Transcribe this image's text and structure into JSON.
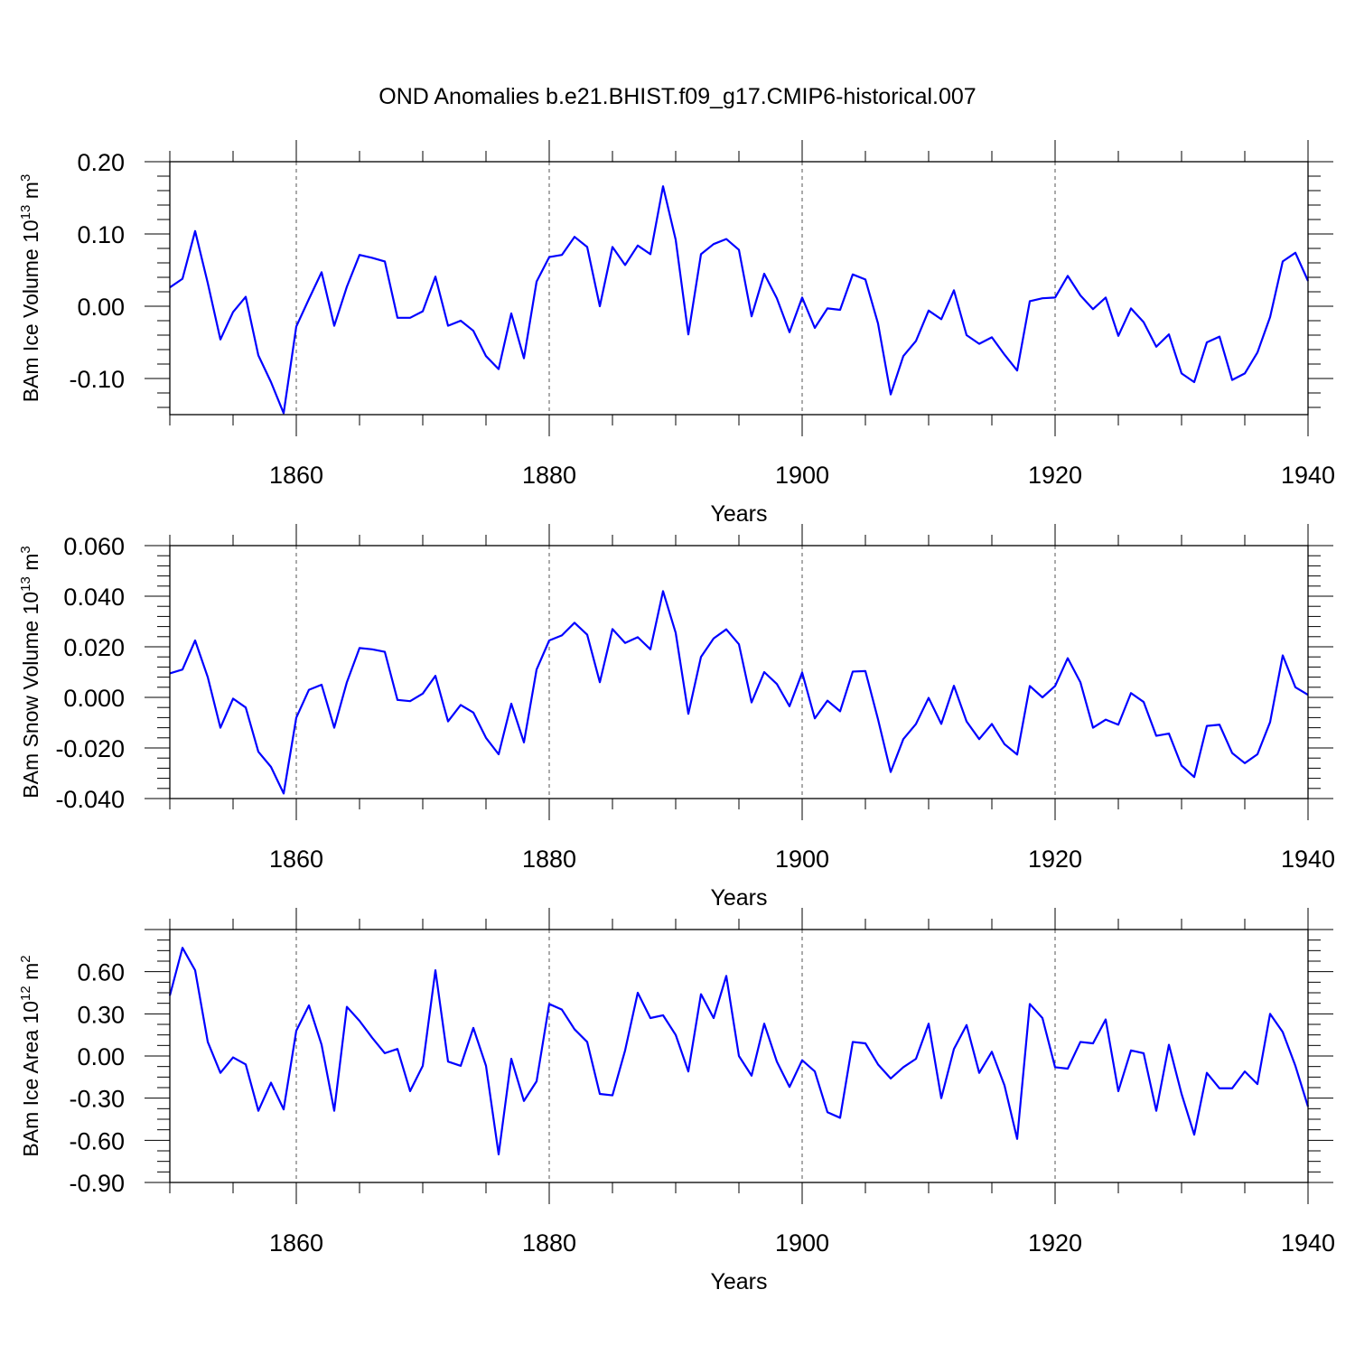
{
  "title": "OND Anomalies b.e21.BHIST.f09_g17.CMIP6-historical.007",
  "colors": {
    "series": "#0000ff",
    "axes": "#000000",
    "grid": "#555555"
  },
  "chart_data": [
    {
      "type": "line",
      "xlabel": "Years",
      "ylabel": {
        "base": "BAm Ice Volume 10",
        "exp1": "13",
        "unit": " m",
        "exp2": "3"
      },
      "xlim": [
        1850,
        1940
      ],
      "ylim": [
        -0.15,
        0.2
      ],
      "yticks": [
        "-0.10",
        "0.00",
        "0.10",
        "0.20"
      ],
      "ytick_values": [
        -0.1,
        0.0,
        0.1,
        0.2
      ],
      "xticks": [
        "1860",
        "1880",
        "1900",
        "1920",
        "1940"
      ],
      "grid": "dashed vertical at major x ticks",
      "series": [
        {
          "x_start": 1850,
          "values": [
            0.026,
            0.038,
            0.104,
            0.032,
            -0.046,
            -0.008,
            0.013,
            -0.068,
            -0.105,
            -0.148,
            -0.028,
            0.01,
            0.047,
            -0.027,
            0.027,
            0.071,
            0.067,
            0.062,
            -0.016,
            -0.016,
            -0.007,
            0.041,
            -0.027,
            -0.02,
            -0.034,
            -0.069,
            -0.087,
            -0.01,
            -0.072,
            0.034,
            0.068,
            0.071,
            0.096,
            0.082,
            0.0,
            0.082,
            0.057,
            0.084,
            0.072,
            0.166,
            0.092,
            -0.039,
            0.072,
            0.086,
            0.093,
            0.078,
            -0.014,
            0.045,
            0.011,
            -0.036,
            0.012,
            -0.03,
            -0.003,
            -0.005,
            0.044,
            0.037,
            -0.024,
            -0.122,
            -0.069,
            -0.048,
            -0.006,
            -0.018,
            0.022,
            -0.04,
            -0.052,
            -0.043,
            -0.067,
            -0.089,
            0.007,
            0.011,
            0.012,
            0.042,
            0.015,
            -0.004,
            0.012,
            -0.041,
            -0.003,
            -0.022,
            -0.056,
            -0.039,
            -0.093,
            -0.105,
            -0.05,
            -0.042,
            -0.102,
            -0.093,
            -0.064,
            -0.015,
            0.062,
            0.074,
            0.035
          ]
        }
      ]
    },
    {
      "type": "line",
      "xlabel": "Years",
      "ylabel": {
        "base": "BAm Snow Volume 10",
        "exp1": "13",
        "unit": " m",
        "exp2": "3"
      },
      "xlim": [
        1850,
        1940
      ],
      "ylim": [
        -0.04,
        0.06
      ],
      "yticks": [
        "-0.040",
        "-0.020",
        "0.000",
        "0.020",
        "0.040",
        "0.060"
      ],
      "ytick_values": [
        -0.04,
        -0.02,
        0.0,
        0.02,
        0.04,
        0.06
      ],
      "xticks": [
        "1860",
        "1880",
        "1900",
        "1920",
        "1940"
      ],
      "grid": "dashed vertical at major x ticks",
      "series": [
        {
          "x_start": 1850,
          "values": [
            0.0095,
            0.011,
            0.0225,
            0.008,
            -0.012,
            -0.0005,
            -0.004,
            -0.0215,
            -0.0275,
            -0.038,
            -0.008,
            0.003,
            0.005,
            -0.012,
            0.006,
            0.0195,
            0.019,
            0.018,
            -0.001,
            -0.0015,
            0.0015,
            0.0085,
            -0.0095,
            -0.003,
            -0.006,
            -0.016,
            -0.0225,
            -0.0025,
            -0.0178,
            0.011,
            0.0225,
            0.0245,
            0.0295,
            0.0248,
            0.006,
            0.027,
            0.0215,
            0.0238,
            0.019,
            0.042,
            0.0255,
            -0.0065,
            0.016,
            0.0233,
            0.0269,
            0.021,
            -0.002,
            0.01,
            0.0053,
            -0.0035,
            0.0098,
            -0.0083,
            -0.0013,
            -0.0055,
            0.0102,
            0.0104,
            -0.0087,
            -0.0295,
            -0.0165,
            -0.0105,
            -0.0002,
            -0.0105,
            0.0046,
            -0.0095,
            -0.0165,
            -0.0105,
            -0.0185,
            -0.0226,
            0.0045,
            0.0,
            0.0045,
            0.0155,
            0.006,
            -0.012,
            -0.0088,
            -0.0108,
            0.0017,
            -0.0018,
            -0.0152,
            -0.0143,
            -0.027,
            -0.0315,
            -0.0113,
            -0.0108,
            -0.022,
            -0.026,
            -0.0225,
            -0.0098,
            0.0166,
            0.004,
            0.001
          ]
        }
      ]
    },
    {
      "type": "line",
      "xlabel": "Years",
      "ylabel": {
        "base": "BAm Ice Area 10",
        "exp1": "12",
        "unit": " m",
        "exp2": "2"
      },
      "xlim": [
        1850,
        1940
      ],
      "ylim": [
        -0.9,
        0.9
      ],
      "yticks": [
        "-0.90",
        "-0.60",
        "-0.30",
        "0.00",
        "0.30",
        "0.60"
      ],
      "ytick_values": [
        -0.9,
        -0.6,
        -0.3,
        0.0,
        0.3,
        0.6
      ],
      "xticks": [
        "1860",
        "1880",
        "1900",
        "1920",
        "1940"
      ],
      "grid": "dashed vertical at major x ticks",
      "series": [
        {
          "x_start": 1850,
          "values": [
            0.43,
            0.77,
            0.61,
            0.1,
            -0.12,
            -0.01,
            -0.06,
            -0.39,
            -0.19,
            -0.38,
            0.18,
            0.36,
            0.08,
            -0.39,
            0.35,
            0.25,
            0.13,
            0.02,
            0.05,
            -0.25,
            -0.07,
            0.61,
            -0.04,
            -0.07,
            0.2,
            -0.07,
            -0.7,
            -0.02,
            -0.32,
            -0.18,
            0.37,
            0.33,
            0.19,
            0.1,
            -0.27,
            -0.28,
            0.04,
            0.45,
            0.27,
            0.29,
            0.15,
            -0.11,
            0.44,
            0.27,
            0.57,
            0.0,
            -0.14,
            0.23,
            -0.04,
            -0.22,
            -0.03,
            -0.11,
            -0.4,
            -0.44,
            0.1,
            0.09,
            -0.06,
            -0.16,
            -0.08,
            -0.02,
            0.23,
            -0.3,
            0.05,
            0.22,
            -0.12,
            0.03,
            -0.21,
            -0.59,
            0.37,
            0.27,
            -0.08,
            -0.09,
            0.1,
            0.09,
            0.26,
            -0.25,
            0.04,
            0.02,
            -0.39,
            0.08,
            -0.27,
            -0.56,
            -0.12,
            -0.23,
            -0.23,
            -0.11,
            -0.2,
            0.3,
            0.17,
            -0.07,
            -0.36
          ]
        }
      ]
    }
  ]
}
